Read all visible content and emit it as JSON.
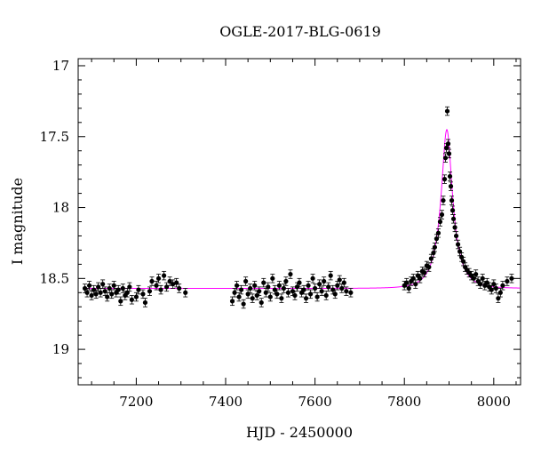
{
  "chart_data": {
    "type": "scatter",
    "title": "OGLE-2017-BLG-0619",
    "xlabel": "HJD - 2450000",
    "ylabel": "I magnitude",
    "xlim": [
      7070,
      8060
    ],
    "ylim": [
      19.25,
      16.95
    ],
    "y_inverted": true,
    "x_ticks": [
      7200,
      7400,
      7600,
      7800,
      8000
    ],
    "y_ticks": [
      17,
      17.5,
      18,
      18.5,
      19
    ],
    "y_tick_labels": [
      "17",
      "17.5",
      "18",
      "18.5",
      "19"
    ],
    "grid": false,
    "legend": "none",
    "colors": {
      "points": "#000000",
      "model": "#ff00ff"
    },
    "model": {
      "name": "",
      "baseline_mag": 18.57,
      "peak_time": 7895,
      "peak_mag": 17.45,
      "description_shape": "single-lens microlensing light curve"
    },
    "series": [
      {
        "x": [
          7085,
          7090,
          7095,
          7100,
          7105,
          7110,
          7115,
          7120,
          7125,
          7130,
          7135,
          7140,
          7145,
          7150,
          7155,
          7160,
          7165,
          7170,
          7175,
          7180,
          7185,
          7190,
          7200,
          7205,
          7215,
          7220,
          7230,
          7235,
          7245,
          7250,
          7255,
          7262,
          7268,
          7275,
          7282,
          7290,
          7296,
          7310,
          7415,
          7420,
          7425,
          7430,
          7435,
          7440,
          7445,
          7450,
          7455,
          7460,
          7465,
          7470,
          7475,
          7480,
          7485,
          7490,
          7495,
          7500,
          7505,
          7510,
          7515,
          7520,
          7525,
          7530,
          7535,
          7540,
          7545,
          7550,
          7555,
          7560,
          7565,
          7570,
          7575,
          7580,
          7585,
          7590,
          7595,
          7600,
          7605,
          7610,
          7615,
          7620,
          7625,
          7630,
          7635,
          7640,
          7645,
          7650,
          7655,
          7660,
          7665,
          7670,
          7680,
          7800,
          7805,
          7810,
          7815,
          7820,
          7825,
          7830,
          7835,
          7840,
          7845,
          7850,
          7855,
          7860,
          7865,
          7868,
          7872,
          7876,
          7880,
          7884,
          7887,
          7890,
          7892,
          7894,
          7896,
          7898,
          7900,
          7902,
          7904,
          7906,
          7908,
          7910,
          7913,
          7916,
          7920,
          7924,
          7928,
          7932,
          7936,
          7940,
          7945,
          7950,
          7955,
          7960,
          7965,
          7970,
          7975,
          7980,
          7985,
          7990,
          7995,
          8000,
          8005,
          8010,
          8015,
          8020,
          8030,
          8040
        ],
        "y": [
          18.57,
          18.6,
          18.55,
          18.62,
          18.58,
          18.61,
          18.56,
          18.6,
          18.54,
          18.59,
          18.63,
          18.57,
          18.61,
          18.55,
          18.6,
          18.58,
          18.66,
          18.57,
          18.62,
          18.6,
          18.56,
          18.65,
          18.63,
          18.58,
          18.61,
          18.67,
          18.59,
          18.52,
          18.55,
          18.5,
          18.58,
          18.48,
          18.56,
          18.52,
          18.54,
          18.53,
          18.57,
          18.6,
          18.66,
          18.6,
          18.55,
          18.63,
          18.58,
          18.68,
          18.52,
          18.61,
          18.57,
          18.64,
          18.55,
          18.62,
          18.59,
          18.67,
          18.53,
          18.6,
          18.56,
          18.63,
          18.5,
          18.58,
          18.61,
          18.55,
          18.64,
          18.57,
          18.52,
          18.6,
          18.47,
          18.59,
          18.62,
          18.56,
          18.53,
          18.6,
          18.58,
          18.64,
          18.55,
          18.61,
          18.5,
          18.57,
          18.63,
          18.54,
          18.59,
          18.52,
          18.62,
          18.56,
          18.48,
          18.58,
          18.61,
          18.55,
          18.51,
          18.57,
          18.53,
          18.59,
          18.6,
          18.55,
          18.53,
          18.57,
          18.52,
          18.5,
          18.54,
          18.48,
          18.5,
          18.45,
          18.46,
          18.41,
          18.42,
          18.36,
          18.32,
          18.28,
          18.22,
          18.18,
          18.1,
          18.05,
          17.95,
          17.8,
          17.65,
          17.58,
          17.32,
          17.55,
          17.62,
          17.78,
          17.85,
          17.95,
          18.02,
          18.08,
          18.14,
          18.2,
          18.26,
          18.31,
          18.35,
          18.38,
          18.42,
          18.44,
          18.46,
          18.48,
          18.5,
          18.47,
          18.52,
          18.54,
          18.5,
          18.55,
          18.53,
          18.56,
          18.58,
          18.54,
          18.57,
          18.64,
          18.6,
          18.55,
          18.52,
          18.5
        ],
        "y_err": 0.03
      }
    ]
  }
}
